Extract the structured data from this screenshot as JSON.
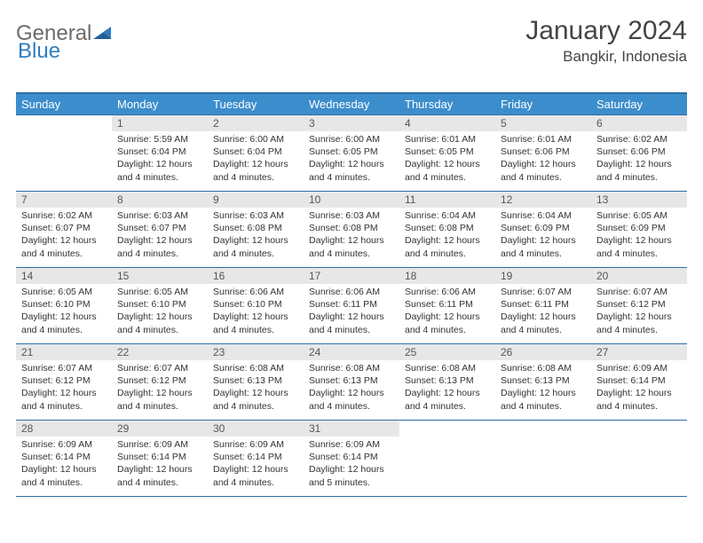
{
  "brand": {
    "part1": "General",
    "part2": "Blue"
  },
  "title": "January 2024",
  "location": "Bangkir, Indonesia",
  "colors": {
    "header_bg": "#3c8dcc",
    "header_border": "#2f6fa6",
    "daynum_bg": "#e7e7e7",
    "text": "#333333",
    "brand_gray": "#6b6b6b",
    "brand_blue": "#2f7dbf"
  },
  "weekdays": [
    "Sunday",
    "Monday",
    "Tuesday",
    "Wednesday",
    "Thursday",
    "Friday",
    "Saturday"
  ],
  "weeks": [
    [
      {
        "num": "",
        "sunrise": "",
        "sunset": "",
        "daylight": ""
      },
      {
        "num": "1",
        "sunrise": "5:59 AM",
        "sunset": "6:04 PM",
        "daylight": "12 hours and 4 minutes."
      },
      {
        "num": "2",
        "sunrise": "6:00 AM",
        "sunset": "6:04 PM",
        "daylight": "12 hours and 4 minutes."
      },
      {
        "num": "3",
        "sunrise": "6:00 AM",
        "sunset": "6:05 PM",
        "daylight": "12 hours and 4 minutes."
      },
      {
        "num": "4",
        "sunrise": "6:01 AM",
        "sunset": "6:05 PM",
        "daylight": "12 hours and 4 minutes."
      },
      {
        "num": "5",
        "sunrise": "6:01 AM",
        "sunset": "6:06 PM",
        "daylight": "12 hours and 4 minutes."
      },
      {
        "num": "6",
        "sunrise": "6:02 AM",
        "sunset": "6:06 PM",
        "daylight": "12 hours and 4 minutes."
      }
    ],
    [
      {
        "num": "7",
        "sunrise": "6:02 AM",
        "sunset": "6:07 PM",
        "daylight": "12 hours and 4 minutes."
      },
      {
        "num": "8",
        "sunrise": "6:03 AM",
        "sunset": "6:07 PM",
        "daylight": "12 hours and 4 minutes."
      },
      {
        "num": "9",
        "sunrise": "6:03 AM",
        "sunset": "6:08 PM",
        "daylight": "12 hours and 4 minutes."
      },
      {
        "num": "10",
        "sunrise": "6:03 AM",
        "sunset": "6:08 PM",
        "daylight": "12 hours and 4 minutes."
      },
      {
        "num": "11",
        "sunrise": "6:04 AM",
        "sunset": "6:08 PM",
        "daylight": "12 hours and 4 minutes."
      },
      {
        "num": "12",
        "sunrise": "6:04 AM",
        "sunset": "6:09 PM",
        "daylight": "12 hours and 4 minutes."
      },
      {
        "num": "13",
        "sunrise": "6:05 AM",
        "sunset": "6:09 PM",
        "daylight": "12 hours and 4 minutes."
      }
    ],
    [
      {
        "num": "14",
        "sunrise": "6:05 AM",
        "sunset": "6:10 PM",
        "daylight": "12 hours and 4 minutes."
      },
      {
        "num": "15",
        "sunrise": "6:05 AM",
        "sunset": "6:10 PM",
        "daylight": "12 hours and 4 minutes."
      },
      {
        "num": "16",
        "sunrise": "6:06 AM",
        "sunset": "6:10 PM",
        "daylight": "12 hours and 4 minutes."
      },
      {
        "num": "17",
        "sunrise": "6:06 AM",
        "sunset": "6:11 PM",
        "daylight": "12 hours and 4 minutes."
      },
      {
        "num": "18",
        "sunrise": "6:06 AM",
        "sunset": "6:11 PM",
        "daylight": "12 hours and 4 minutes."
      },
      {
        "num": "19",
        "sunrise": "6:07 AM",
        "sunset": "6:11 PM",
        "daylight": "12 hours and 4 minutes."
      },
      {
        "num": "20",
        "sunrise": "6:07 AM",
        "sunset": "6:12 PM",
        "daylight": "12 hours and 4 minutes."
      }
    ],
    [
      {
        "num": "21",
        "sunrise": "6:07 AM",
        "sunset": "6:12 PM",
        "daylight": "12 hours and 4 minutes."
      },
      {
        "num": "22",
        "sunrise": "6:07 AM",
        "sunset": "6:12 PM",
        "daylight": "12 hours and 4 minutes."
      },
      {
        "num": "23",
        "sunrise": "6:08 AM",
        "sunset": "6:13 PM",
        "daylight": "12 hours and 4 minutes."
      },
      {
        "num": "24",
        "sunrise": "6:08 AM",
        "sunset": "6:13 PM",
        "daylight": "12 hours and 4 minutes."
      },
      {
        "num": "25",
        "sunrise": "6:08 AM",
        "sunset": "6:13 PM",
        "daylight": "12 hours and 4 minutes."
      },
      {
        "num": "26",
        "sunrise": "6:08 AM",
        "sunset": "6:13 PM",
        "daylight": "12 hours and 4 minutes."
      },
      {
        "num": "27",
        "sunrise": "6:09 AM",
        "sunset": "6:14 PM",
        "daylight": "12 hours and 4 minutes."
      }
    ],
    [
      {
        "num": "28",
        "sunrise": "6:09 AM",
        "sunset": "6:14 PM",
        "daylight": "12 hours and 4 minutes."
      },
      {
        "num": "29",
        "sunrise": "6:09 AM",
        "sunset": "6:14 PM",
        "daylight": "12 hours and 4 minutes."
      },
      {
        "num": "30",
        "sunrise": "6:09 AM",
        "sunset": "6:14 PM",
        "daylight": "12 hours and 4 minutes."
      },
      {
        "num": "31",
        "sunrise": "6:09 AM",
        "sunset": "6:14 PM",
        "daylight": "12 hours and 5 minutes."
      },
      {
        "num": "",
        "sunrise": "",
        "sunset": "",
        "daylight": ""
      },
      {
        "num": "",
        "sunrise": "",
        "sunset": "",
        "daylight": ""
      },
      {
        "num": "",
        "sunrise": "",
        "sunset": "",
        "daylight": ""
      }
    ]
  ],
  "labels": {
    "sunrise": "Sunrise: ",
    "sunset": "Sunset: ",
    "daylight": "Daylight: "
  }
}
